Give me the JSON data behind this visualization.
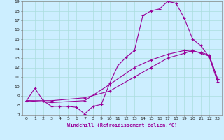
{
  "title": "",
  "xlabel": "Windchill (Refroidissement éolien,°C)",
  "bg_color": "#cceeff",
  "grid_color": "#aadddd",
  "line_color": "#990099",
  "xlim": [
    -0.5,
    23.5
  ],
  "ylim": [
    7,
    19
  ],
  "xticks": [
    0,
    1,
    2,
    3,
    4,
    5,
    6,
    7,
    8,
    9,
    10,
    11,
    12,
    13,
    14,
    15,
    16,
    17,
    18,
    19,
    20,
    21,
    22,
    23
  ],
  "yticks": [
    7,
    8,
    9,
    10,
    11,
    12,
    13,
    14,
    15,
    16,
    17,
    18,
    19
  ],
  "line1_x": [
    0,
    1,
    2,
    3,
    4,
    5,
    6,
    7,
    8,
    9,
    10,
    11,
    12,
    13,
    14,
    15,
    16,
    17,
    18,
    19,
    20,
    21,
    22,
    23
  ],
  "line1_y": [
    8.5,
    9.8,
    8.5,
    7.9,
    7.9,
    7.9,
    7.8,
    7.1,
    7.9,
    8.1,
    10.3,
    12.2,
    13.1,
    13.8,
    17.5,
    18.0,
    18.2,
    19.0,
    18.8,
    17.2,
    15.0,
    14.3,
    13.1,
    10.5
  ],
  "line2_x": [
    0,
    3,
    7,
    10,
    13,
    15,
    17,
    19,
    20,
    21,
    22,
    23
  ],
  "line2_y": [
    8.5,
    8.3,
    8.5,
    10.2,
    12.0,
    12.8,
    13.4,
    13.8,
    13.7,
    13.6,
    13.3,
    10.8
  ],
  "line3_x": [
    0,
    3,
    7,
    10,
    13,
    15,
    17,
    19,
    20,
    21,
    22,
    23
  ],
  "line3_y": [
    8.5,
    8.5,
    8.8,
    9.5,
    11.0,
    12.0,
    13.0,
    13.5,
    13.8,
    13.5,
    13.2,
    10.8
  ]
}
